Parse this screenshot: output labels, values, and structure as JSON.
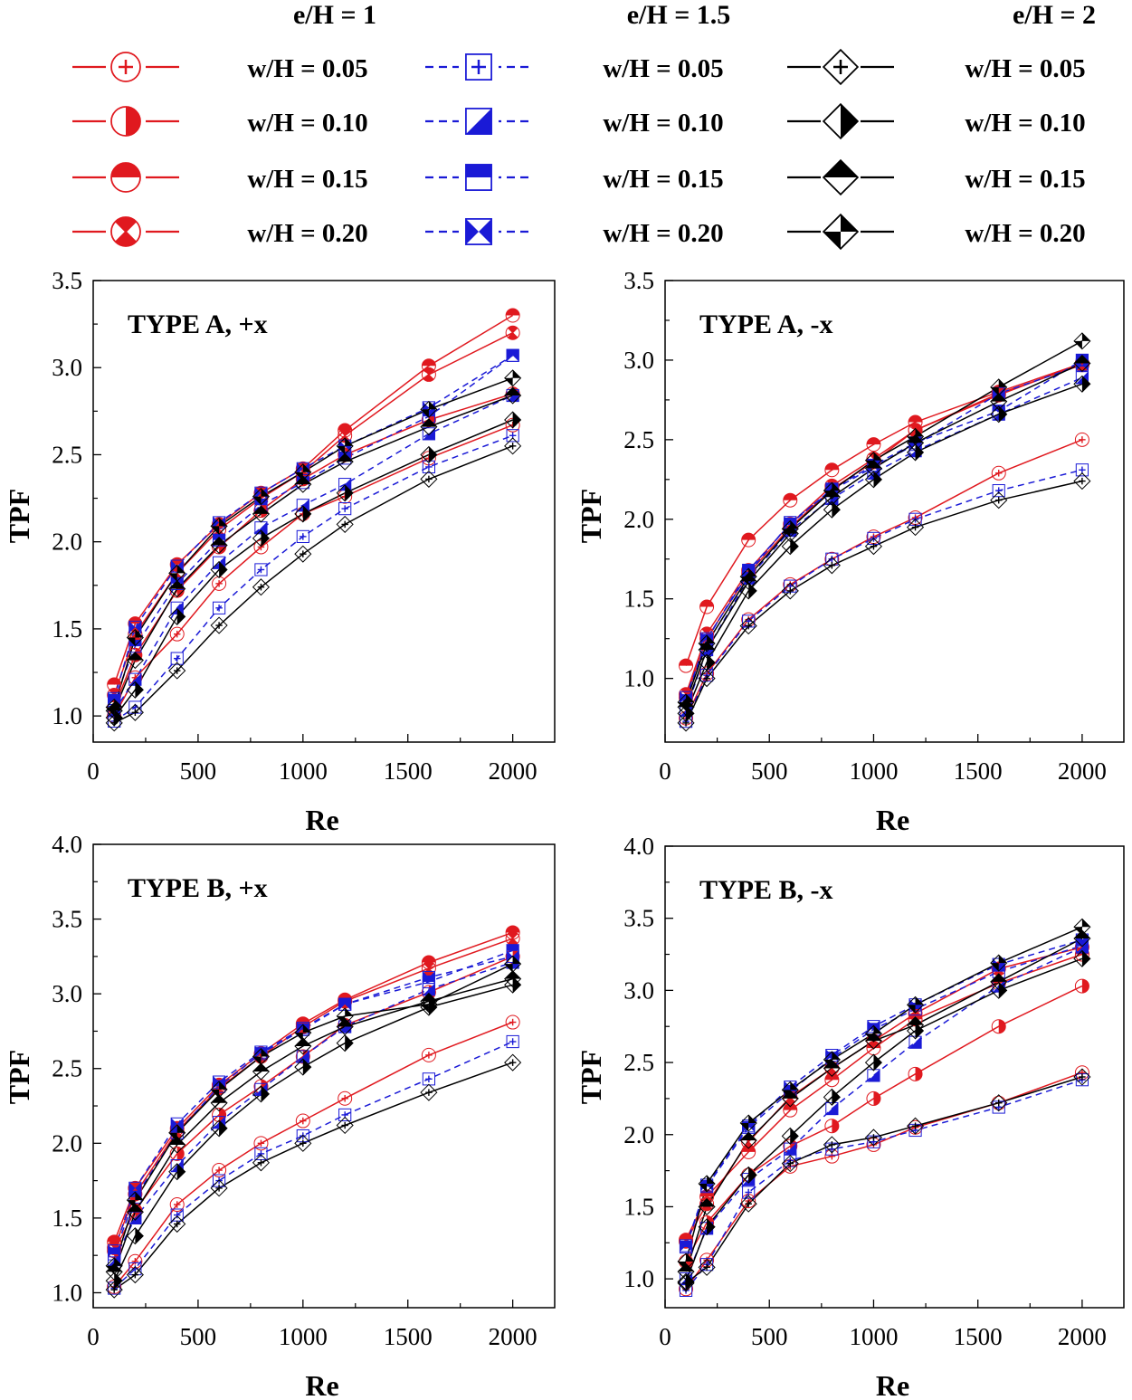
{
  "figure": {
    "x_categories": [
      100,
      200,
      400,
      600,
      800,
      1000,
      1200,
      1600,
      2000
    ]
  },
  "legend": {
    "groups": [
      {
        "title": "e/H = 1",
        "color": "#e0191f",
        "marker": "circle",
        "dash": "",
        "entries": [
          "w/H = 0.05",
          "w/H = 0.10",
          "w/H = 0.15",
          "w/H = 0.20"
        ]
      },
      {
        "title": "e/H = 1.5",
        "color": "#1a1ad6",
        "marker": "square",
        "dash": "9,6",
        "entries": [
          "w/H = 0.05",
          "w/H = 0.10",
          "w/H = 0.15",
          "w/H = 0.20"
        ]
      },
      {
        "title": "e/H = 2",
        "color": "#000000",
        "marker": "diamond",
        "dash": "",
        "entries": [
          "w/H = 0.05",
          "w/H = 0.10",
          "w/H = 0.15",
          "w/H = 0.20"
        ]
      }
    ],
    "fill_patterns": [
      "plus",
      "half-right",
      "half-top",
      "hourglass"
    ]
  },
  "chart_data": [
    {
      "type": "line",
      "title": "TYPE A, +x",
      "xlabel": "Re",
      "ylabel": "TPF",
      "xlim": [
        0,
        2200
      ],
      "ylim": [
        0.85,
        3.5
      ],
      "xticks": [
        "0",
        "500",
        "1000",
        "1500",
        "2000"
      ],
      "yticks": [
        "1.0",
        "1.5",
        "2.0",
        "2.5",
        "3.0",
        "3.5"
      ],
      "x": [
        100,
        200,
        400,
        600,
        800,
        1000,
        1200,
        1600,
        2000
      ],
      "series": [
        {
          "name": "e/H = 1, w/H = 0.05",
          "values": [
            1.0,
            1.22,
            1.47,
            1.76,
            1.97,
            2.16,
            2.26,
            2.48,
            2.67
          ]
        },
        {
          "name": "e/H = 1, w/H = 0.10",
          "values": [
            1.05,
            1.35,
            1.72,
            1.97,
            2.18,
            2.36,
            2.5,
            2.7,
            2.85
          ]
        },
        {
          "name": "e/H = 1, w/H = 0.15",
          "values": [
            1.18,
            1.53,
            1.87,
            2.1,
            2.28,
            2.42,
            2.64,
            3.01,
            3.3
          ]
        },
        {
          "name": "e/H = 1, w/H = 0.20",
          "values": [
            1.12,
            1.47,
            1.82,
            2.07,
            2.25,
            2.4,
            2.61,
            2.96,
            3.2
          ]
        },
        {
          "name": "e/H = 1.5, w/H = 0.05",
          "values": [
            0.97,
            1.05,
            1.33,
            1.62,
            1.84,
            2.03,
            2.19,
            2.43,
            2.61
          ]
        },
        {
          "name": "e/H = 1.5, w/H = 0.10",
          "values": [
            1.03,
            1.21,
            1.62,
            1.88,
            2.08,
            2.21,
            2.33,
            2.62,
            2.84
          ]
        },
        {
          "name": "e/H = 1.5, w/H = 0.15",
          "values": [
            1.09,
            1.4,
            1.76,
            2.01,
            2.21,
            2.34,
            2.48,
            2.72,
            3.07
          ]
        },
        {
          "name": "e/H = 1.5, w/H = 0.20",
          "values": [
            1.1,
            1.51,
            1.86,
            2.11,
            2.28,
            2.42,
            2.55,
            2.77,
            3.07
          ]
        },
        {
          "name": "e/H = 2, w/H = 0.05",
          "values": [
            0.96,
            1.02,
            1.26,
            1.52,
            1.74,
            1.93,
            2.1,
            2.36,
            2.55
          ]
        },
        {
          "name": "e/H = 2, w/H = 0.10",
          "values": [
            0.99,
            1.15,
            1.57,
            1.84,
            2.02,
            2.16,
            2.28,
            2.5,
            2.7
          ]
        },
        {
          "name": "e/H = 2, w/H = 0.15",
          "values": [
            1.03,
            1.32,
            1.73,
            1.98,
            2.16,
            2.33,
            2.46,
            2.66,
            2.84
          ]
        },
        {
          "name": "e/H = 2, w/H = 0.20",
          "values": [
            1.05,
            1.45,
            1.82,
            2.09,
            2.26,
            2.4,
            2.55,
            2.76,
            2.94
          ]
        }
      ]
    },
    {
      "type": "line",
      "title": "TYPE A, -x",
      "xlabel": "Re",
      "ylabel": "TPF",
      "xlim": [
        0,
        2200
      ],
      "ylim": [
        0.6,
        3.5
      ],
      "xticks": [
        "0",
        "500",
        "1000",
        "1500",
        "2000"
      ],
      "yticks": [
        "1.0",
        "1.5",
        "2.0",
        "2.5",
        "3.0",
        "3.5"
      ],
      "x": [
        100,
        200,
        400,
        600,
        800,
        1000,
        1200,
        1600,
        2000
      ],
      "series": [
        {
          "name": "e/H = 1, w/H = 0.05",
          "values": [
            0.75,
            1.03,
            1.37,
            1.59,
            1.75,
            1.89,
            2.01,
            2.29,
            2.5
          ]
        },
        {
          "name": "e/H = 1, w/H = 0.10",
          "values": [
            0.88,
            1.25,
            1.66,
            1.95,
            2.19,
            2.36,
            2.56,
            2.78,
            2.98
          ]
        },
        {
          "name": "e/H = 1, w/H = 0.15",
          "values": [
            1.08,
            1.45,
            1.87,
            2.12,
            2.31,
            2.47,
            2.61,
            2.8,
            2.98
          ]
        },
        {
          "name": "e/H = 1, w/H = 0.20",
          "values": [
            0.9,
            1.28,
            1.68,
            1.97,
            2.21,
            2.38,
            2.56,
            2.79,
            2.97
          ]
        },
        {
          "name": "e/H = 1.5, w/H = 0.05",
          "values": [
            0.73,
            1.02,
            1.36,
            1.58,
            1.75,
            1.88,
            2.0,
            2.18,
            2.31
          ]
        },
        {
          "name": "e/H = 1.5, w/H = 0.10",
          "values": [
            0.8,
            1.18,
            1.63,
            1.93,
            2.13,
            2.29,
            2.43,
            2.66,
            2.89
          ]
        },
        {
          "name": "e/H = 1.5, w/H = 0.15",
          "values": [
            0.86,
            1.24,
            1.68,
            1.97,
            2.19,
            2.34,
            2.48,
            2.68,
            3.0
          ]
        },
        {
          "name": "e/H = 1.5, w/H = 0.20",
          "values": [
            0.88,
            1.25,
            1.66,
            1.98,
            2.18,
            2.33,
            2.47,
            2.79,
            2.97
          ]
        },
        {
          "name": "e/H = 2, w/H = 0.05",
          "values": [
            0.72,
            1.0,
            1.33,
            1.55,
            1.71,
            1.83,
            1.95,
            2.12,
            2.24
          ]
        },
        {
          "name": "e/H = 2, w/H = 0.10",
          "values": [
            0.78,
            1.1,
            1.55,
            1.83,
            2.06,
            2.25,
            2.42,
            2.66,
            2.85
          ]
        },
        {
          "name": "e/H = 2, w/H = 0.15",
          "values": [
            0.82,
            1.18,
            1.61,
            1.91,
            2.14,
            2.32,
            2.48,
            2.74,
            2.98
          ]
        },
        {
          "name": "e/H = 2, w/H = 0.20",
          "values": [
            0.85,
            1.22,
            1.64,
            1.94,
            2.18,
            2.37,
            2.52,
            2.83,
            3.12
          ]
        }
      ]
    },
    {
      "type": "line",
      "title": "TYPE B, +x",
      "xlabel": "Re",
      "ylabel": "TPF",
      "xlim": [
        0,
        2200
      ],
      "ylim": [
        0.9,
        4.0
      ],
      "xticks": [
        "0",
        "500",
        "1000",
        "1500",
        "2000"
      ],
      "yticks": [
        "1.0",
        "1.5",
        "2.0",
        "2.5",
        "3.0",
        "3.5",
        "4.0"
      ],
      "x": [
        100,
        200,
        400,
        600,
        800,
        1000,
        1200,
        1600,
        2000
      ],
      "series": [
        {
          "name": "e/H = 1, w/H = 0.05",
          "values": [
            1.04,
            1.21,
            1.59,
            1.82,
            2.0,
            2.15,
            2.3,
            2.59,
            2.81
          ]
        },
        {
          "name": "e/H = 1, w/H = 0.10",
          "values": [
            1.28,
            1.55,
            1.93,
            2.19,
            2.38,
            2.58,
            2.79,
            3.01,
            3.25
          ]
        },
        {
          "name": "e/H = 1, w/H = 0.15",
          "values": [
            1.34,
            1.7,
            2.1,
            2.39,
            2.6,
            2.8,
            2.96,
            3.21,
            3.41
          ]
        },
        {
          "name": "e/H = 1, w/H = 0.20",
          "values": [
            1.3,
            1.66,
            2.08,
            2.37,
            2.58,
            2.78,
            2.95,
            3.17,
            3.37
          ]
        },
        {
          "name": "e/H = 1.5, w/H = 0.05",
          "values": [
            1.03,
            1.16,
            1.52,
            1.75,
            1.93,
            2.05,
            2.19,
            2.43,
            2.68
          ]
        },
        {
          "name": "e/H = 1.5, w/H = 0.10",
          "values": [
            1.22,
            1.5,
            1.85,
            2.14,
            2.36,
            2.58,
            2.78,
            3.03,
            3.21
          ]
        },
        {
          "name": "e/H = 1.5, w/H = 0.15",
          "values": [
            1.26,
            1.64,
            2.07,
            2.38,
            2.6,
            2.76,
            2.93,
            3.08,
            3.29
          ]
        },
        {
          "name": "e/H = 1.5, w/H = 0.20",
          "values": [
            1.28,
            1.7,
            2.13,
            2.41,
            2.61,
            2.77,
            2.93,
            3.11,
            3.25
          ]
        },
        {
          "name": "e/H = 2, w/H = 0.05",
          "values": [
            1.02,
            1.12,
            1.46,
            1.7,
            1.87,
            2.0,
            2.12,
            2.34,
            2.54
          ]
        },
        {
          "name": "e/H = 2, w/H = 0.10",
          "values": [
            1.08,
            1.38,
            1.81,
            2.1,
            2.33,
            2.51,
            2.67,
            2.91,
            3.06
          ]
        },
        {
          "name": "e/H = 2, w/H = 0.15",
          "values": [
            1.14,
            1.54,
            1.99,
            2.27,
            2.48,
            2.65,
            2.78,
            2.95,
            3.1
          ]
        },
        {
          "name": "e/H = 2, w/H = 0.20",
          "values": [
            1.18,
            1.62,
            2.07,
            2.36,
            2.58,
            2.74,
            2.85,
            2.93,
            3.2
          ]
        }
      ]
    },
    {
      "type": "line",
      "title": "TYPE B, -x",
      "xlabel": "Re",
      "ylabel": "TPF",
      "xlim": [
        0,
        2200
      ],
      "ylim": [
        0.8,
        4.0
      ],
      "xticks": [
        "0",
        "500",
        "1000",
        "1500",
        "2000"
      ],
      "yticks": [
        "1.0",
        "1.5",
        "2.0",
        "2.5",
        "3.0",
        "3.5",
        "4.0"
      ],
      "x": [
        100,
        200,
        400,
        600,
        800,
        1000,
        1200,
        1600,
        2000
      ],
      "series": [
        {
          "name": "e/H = 1, w/H = 0.05",
          "values": [
            0.93,
            1.13,
            1.54,
            1.78,
            1.85,
            1.93,
            2.05,
            2.22,
            2.43
          ]
        },
        {
          "name": "e/H = 1, w/H = 0.10",
          "values": [
            1.12,
            1.39,
            1.72,
            1.92,
            2.06,
            2.25,
            2.42,
            2.75,
            3.03
          ]
        },
        {
          "name": "e/H = 1, w/H = 0.15",
          "values": [
            1.27,
            1.57,
            1.88,
            2.17,
            2.38,
            2.6,
            2.8,
            3.05,
            3.25
          ]
        },
        {
          "name": "e/H = 1, w/H = 0.20",
          "values": [
            1.26,
            1.52,
            1.95,
            2.26,
            2.46,
            2.65,
            2.84,
            3.15,
            3.3
          ]
        },
        {
          "name": "e/H = 1.5, w/H = 0.05",
          "values": [
            0.92,
            1.1,
            1.6,
            1.82,
            1.9,
            1.95,
            2.03,
            2.19,
            2.38
          ]
        },
        {
          "name": "e/H = 1.5, w/H = 0.10",
          "values": [
            1.0,
            1.35,
            1.69,
            1.9,
            2.18,
            2.41,
            2.64,
            3.03,
            3.3
          ]
        },
        {
          "name": "e/H = 1.5, w/H = 0.15",
          "values": [
            1.22,
            1.64,
            2.05,
            2.3,
            2.53,
            2.73,
            2.87,
            3.13,
            3.31
          ]
        },
        {
          "name": "e/H = 1.5, w/H = 0.20",
          "values": [
            1.23,
            1.65,
            2.06,
            2.33,
            2.55,
            2.75,
            2.9,
            3.18,
            3.35
          ]
        },
        {
          "name": "e/H = 2, w/H = 0.05",
          "values": [
            0.97,
            1.08,
            1.52,
            1.8,
            1.93,
            1.98,
            2.06,
            2.22,
            2.4
          ]
        },
        {
          "name": "e/H = 2, w/H = 0.10",
          "values": [
            0.98,
            1.36,
            1.72,
            1.99,
            2.26,
            2.5,
            2.72,
            3.0,
            3.22
          ]
        },
        {
          "name": "e/H = 2, w/H = 0.15",
          "values": [
            1.05,
            1.5,
            1.96,
            2.25,
            2.46,
            2.65,
            2.76,
            3.06,
            3.36
          ]
        },
        {
          "name": "e/H = 2, w/H = 0.20",
          "values": [
            1.12,
            1.66,
            2.08,
            2.31,
            2.52,
            2.7,
            2.9,
            3.19,
            3.44
          ]
        }
      ]
    }
  ]
}
